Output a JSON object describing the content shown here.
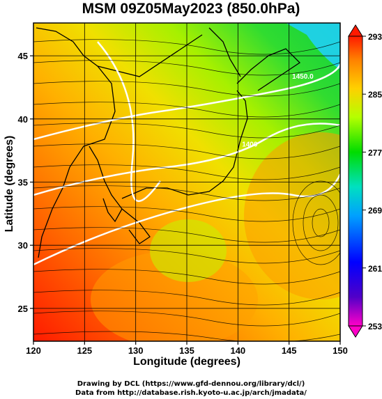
{
  "title": "MSM 09Z05May2023 (850.0hPa)",
  "x_axis": {
    "label": "Longitude (degrees)",
    "min": 120,
    "max": 150,
    "ticks": [
      "120",
      "125",
      "130",
      "135",
      "140",
      "145",
      "150"
    ]
  },
  "y_axis": {
    "label": "Latitude  (degrees)",
    "min": 22.4,
    "max": 47.6,
    "ticks": [
      "25",
      "30",
      "35",
      "40",
      "45"
    ]
  },
  "colorbar": {
    "min": 253,
    "max": 293,
    "labels": [
      "293",
      "285",
      "277",
      "269",
      "261",
      "253"
    ],
    "colors": [
      "#ff00c8",
      "#5000c8",
      "#0000ff",
      "#00c8ff",
      "#00ff80",
      "#00dc00",
      "#b4ff00",
      "#ffd000",
      "#ff8000",
      "#ff1a00"
    ]
  },
  "contour_labels": [
    {
      "text": "1400",
      "lon": 140.4,
      "lat": 37.8
    },
    {
      "text": "1450.0",
      "lon": 145.3,
      "lat": 43.2
    }
  ],
  "credits": [
    "Drawing by DCL (https://www.gfd-dennou.org/library/dcl/)",
    "Data from http://database.rish.kyoto-u.ac.jp/arch/jmadata/"
  ]
}
